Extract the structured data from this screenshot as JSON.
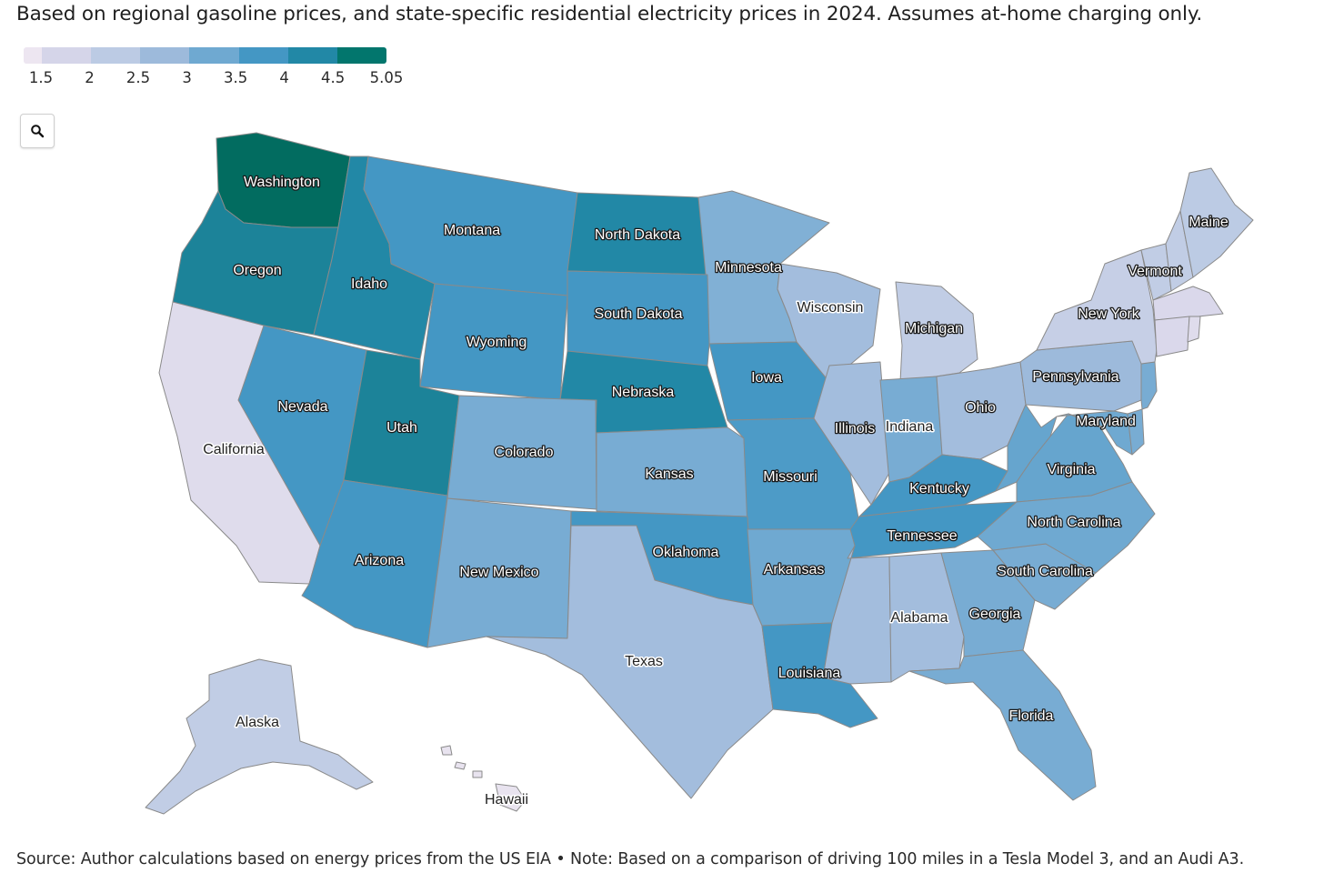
{
  "subtitle": "Based on regional gasoline prices, and state-specific residential electricity prices in 2024. Assumes at-home charging only.",
  "legend": {
    "ticks": [
      "1.5",
      "2",
      "2.5",
      "3",
      "3.5",
      "4",
      "4.5",
      "5.05"
    ],
    "tick_values": [
      1.5,
      2,
      2.5,
      3,
      3.5,
      4,
      4.5,
      5.05
    ],
    "min": 1.5,
    "max": 5.05,
    "colors": [
      "#ede6f1",
      "#d5d5e9",
      "#bccbe4",
      "#9dbadb",
      "#6fa9d1",
      "#4497c4",
      "#2288a6",
      "#02766d"
    ]
  },
  "zoom_icon": "search-icon",
  "source": "Source: Author calculations based on energy prices from the US EIA • Note: Based on a comparison of driving 100 miles in a Tesla Model 3, and an Audi A3.",
  "states": [
    {
      "id": "washington",
      "name": "Washington",
      "value": 5.05
    },
    {
      "id": "oregon",
      "name": "Oregon",
      "value": 4.6
    },
    {
      "id": "idaho",
      "name": "Idaho",
      "value": 4.5
    },
    {
      "id": "montana",
      "name": "Montana",
      "value": 4.0
    },
    {
      "id": "north-dakota",
      "name": "North Dakota",
      "value": 4.5
    },
    {
      "id": "minnesota",
      "name": "Minnesota",
      "value": 3.3
    },
    {
      "id": "maine",
      "name": "Maine",
      "value": 2.5
    },
    {
      "id": "vermont",
      "name": "Vermont",
      "value": 2.4
    },
    {
      "id": "new-york",
      "name": "New York",
      "value": 2.3
    },
    {
      "id": "south-dakota",
      "name": "South Dakota",
      "value": 4.0
    },
    {
      "id": "wisconsin",
      "name": "Wisconsin",
      "value": 2.9
    },
    {
      "id": "michigan",
      "name": "Michigan",
      "value": 2.4
    },
    {
      "id": "wyoming",
      "name": "Wyoming",
      "value": 4.0
    },
    {
      "id": "iowa",
      "name": "Iowa",
      "value": 4.0
    },
    {
      "id": "pennsylvania",
      "name": "Pennsylvania",
      "value": 3.0
    },
    {
      "id": "nebraska",
      "name": "Nebraska",
      "value": 4.5
    },
    {
      "id": "nevada",
      "name": "Nevada",
      "value": 4.0
    },
    {
      "id": "utah",
      "name": "Utah",
      "value": 4.6
    },
    {
      "id": "illinois",
      "name": "Illinois",
      "value": 2.9
    },
    {
      "id": "ohio",
      "name": "Ohio",
      "value": 2.9
    },
    {
      "id": "maryland",
      "name": "Maryland",
      "value": 3.5
    },
    {
      "id": "california",
      "name": "California",
      "value": 1.8
    },
    {
      "id": "colorado",
      "name": "Colorado",
      "value": 3.4
    },
    {
      "id": "indiana",
      "name": "Indiana",
      "value": 3.4
    },
    {
      "id": "virginia",
      "name": "Virginia",
      "value": 3.6
    },
    {
      "id": "kansas",
      "name": "Kansas",
      "value": 3.4
    },
    {
      "id": "missouri",
      "name": "Missouri",
      "value": 3.9
    },
    {
      "id": "kentucky",
      "name": "Kentucky",
      "value": 4.0
    },
    {
      "id": "north-carolina",
      "name": "North Carolina",
      "value": 3.5
    },
    {
      "id": "tennessee",
      "name": "Tennessee",
      "value": 4.0
    },
    {
      "id": "arizona",
      "name": "Arizona",
      "value": 4.0
    },
    {
      "id": "new-mexico",
      "name": "New Mexico",
      "value": 3.4
    },
    {
      "id": "oklahoma",
      "name": "Oklahoma",
      "value": 4.0
    },
    {
      "id": "arkansas",
      "name": "Arkansas",
      "value": 3.5
    },
    {
      "id": "south-carolina",
      "name": "South Carolina",
      "value": 3.4
    },
    {
      "id": "alabama",
      "name": "Alabama",
      "value": 2.9
    },
    {
      "id": "georgia",
      "name": "Georgia",
      "value": 3.4
    },
    {
      "id": "texas",
      "name": "Texas",
      "value": 2.9
    },
    {
      "id": "louisiana",
      "name": "Louisiana",
      "value": 4.0
    },
    {
      "id": "mississippi",
      "value": 2.9
    },
    {
      "id": "florida",
      "name": "Florida",
      "value": 3.4
    },
    {
      "id": "alaska",
      "name": "Alaska",
      "value": 2.4
    },
    {
      "id": "hawaii",
      "name": "Hawaii",
      "value": 1.6
    },
    {
      "id": "new-hampshire",
      "value": 2.4
    },
    {
      "id": "massachusetts",
      "value": 1.9
    },
    {
      "id": "connecticut",
      "value": 1.9
    },
    {
      "id": "rhode-island",
      "value": 1.8
    },
    {
      "id": "new-jersey",
      "value": 3.4
    },
    {
      "id": "delaware",
      "value": 3.4
    },
    {
      "id": "west-virginia",
      "value": 3.6
    }
  ]
}
